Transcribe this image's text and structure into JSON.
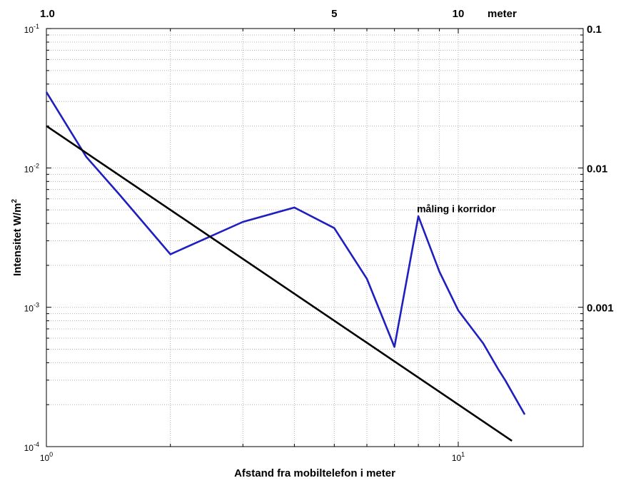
{
  "chart_data": {
    "type": "line",
    "x_scale": "log",
    "y_scale": "log",
    "xlim": [
      1,
      13
    ],
    "ylim": [
      0.0001,
      0.1
    ],
    "grid": true,
    "xlabel": "Afstand fra mobiltelefon i meter",
    "ylabel": "Intensitet W/m²",
    "bottom_ticks": [
      {
        "value": 1,
        "label": "10",
        "exp": "0"
      },
      {
        "value": 10,
        "label": "10",
        "exp": "1"
      }
    ],
    "left_ticks": [
      {
        "value": 0.1,
        "label": "10",
        "exp": "-1"
      },
      {
        "value": 0.01,
        "label": "10",
        "exp": "-2"
      },
      {
        "value": 0.001,
        "label": "10",
        "exp": "-3"
      },
      {
        "value": 0.0001,
        "label": "10",
        "exp": "-4"
      }
    ],
    "top_ticks": [
      {
        "value": 1,
        "label": "1.0"
      },
      {
        "value": 5,
        "label": "5"
      },
      {
        "value": 10,
        "label": "10"
      }
    ],
    "top_unit_label": "meter",
    "right_ticks": [
      {
        "value": 0.1,
        "label": "0.1"
      },
      {
        "value": 0.01,
        "label": "0.01"
      },
      {
        "value": 0.001,
        "label": "0.001"
      }
    ],
    "annotations": [
      {
        "text": "måling i korridor",
        "x": 8,
        "y": 0.0047
      }
    ],
    "series": [
      {
        "color": "#1f1fbf",
        "x": [
          1.0,
          1.25,
          1.5,
          2.0,
          3.0,
          4.0,
          5.0,
          6.0,
          7.0,
          8.0,
          9.0,
          10.0,
          11.5,
          12.5,
          13.0,
          14.5
        ],
        "y": [
          0.035,
          0.012,
          0.0065,
          0.0024,
          0.0041,
          0.0052,
          0.0037,
          0.0016,
          0.00052,
          0.0045,
          0.0018,
          0.00095,
          0.00055,
          0.00036,
          0.0003,
          0.00017
        ]
      },
      {
        "color": "#000000",
        "x": [
          1.0,
          13.5
        ],
        "y": [
          0.02,
          0.00011
        ]
      }
    ]
  }
}
